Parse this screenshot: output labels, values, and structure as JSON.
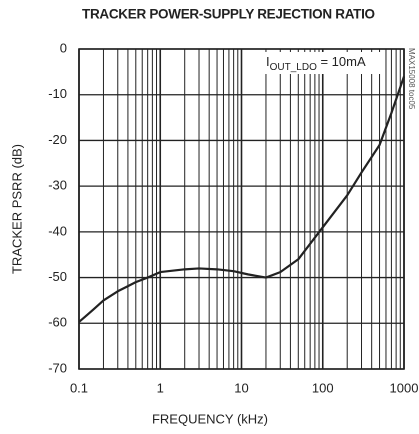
{
  "chart_data": {
    "type": "line",
    "title": "TRACKER POWER-SUPPLY REJECTION RATIO",
    "xlabel": "FREQUENCY (kHz)",
    "ylabel": "TRACKER PSRR (dB)",
    "annotation": {
      "main": "I",
      "sub": "OUT_LDO",
      "rest": " = 10mA"
    },
    "side_note": "MAX15008 toc05",
    "x": [
      0.1,
      0.12,
      0.15,
      0.2,
      0.3,
      0.5,
      0.7,
      1,
      2,
      3,
      5,
      8,
      12,
      20,
      30,
      50,
      100,
      200,
      300,
      500,
      700,
      1000
    ],
    "series": [
      {
        "name": "PSRR",
        "color": "#222222",
        "values": [
          -59.7,
          -58.5,
          -57,
          -55,
          -53,
          -51,
          -50,
          -48.8,
          -48.2,
          -48,
          -48.2,
          -48.6,
          -49.3,
          -50,
          -48.8,
          -46,
          -39,
          -32,
          -27,
          -21,
          -14,
          -6
        ]
      }
    ],
    "xlim": [
      0.1,
      1000
    ],
    "xticks": [
      0.1,
      1,
      10,
      100,
      1000
    ],
    "log_x": true,
    "x_minor_grid": [
      0.2,
      0.3,
      0.4,
      0.5,
      0.6,
      0.7,
      0.8,
      0.9,
      2,
      3,
      4,
      5,
      6,
      7,
      8,
      9,
      20,
      30,
      40,
      50,
      60,
      70,
      80,
      90,
      200,
      300,
      400,
      500,
      600,
      700,
      800,
      900
    ],
    "ylim": [
      -70,
      0
    ],
    "yticks": [
      -70,
      -60,
      -50,
      -40,
      -30,
      -20,
      -10,
      0
    ],
    "grid": true
  }
}
